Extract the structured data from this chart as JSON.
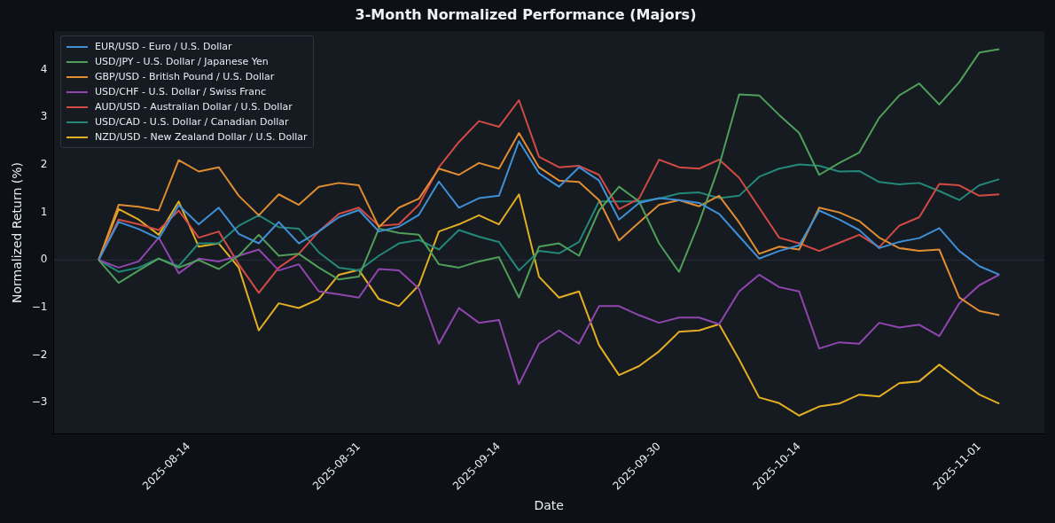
{
  "chart_data": {
    "type": "line",
    "title": "3-Month Normalized Performance (Majors)",
    "xlabel": "Date",
    "ylabel": "Normalized Return (%)",
    "x": [
      "2025-08-05",
      "2025-08-07",
      "2025-08-09",
      "2025-08-11",
      "2025-08-13",
      "2025-08-15",
      "2025-08-17",
      "2025-08-19",
      "2025-08-21",
      "2025-08-23",
      "2025-08-25",
      "2025-08-27",
      "2025-08-29",
      "2025-08-31",
      "2025-09-02",
      "2025-09-04",
      "2025-09-06",
      "2025-09-08",
      "2025-09-10",
      "2025-09-12",
      "2025-09-14",
      "2025-09-16",
      "2025-09-18",
      "2025-09-20",
      "2025-09-22",
      "2025-09-24",
      "2025-09-26",
      "2025-09-28",
      "2025-09-30",
      "2025-10-02",
      "2025-10-04",
      "2025-10-06",
      "2025-10-08",
      "2025-10-10",
      "2025-10-12",
      "2025-10-14",
      "2025-10-16",
      "2025-10-18",
      "2025-10-20",
      "2025-10-22",
      "2025-10-24",
      "2025-10-26",
      "2025-10-28",
      "2025-10-30",
      "2025-11-01",
      "2025-11-03"
    ],
    "series": [
      {
        "name": "EUR/USD - Euro / U.S. Dollar",
        "color": "#3f8fd6",
        "values": [
          0,
          0.8,
          0.65,
          0.45,
          1.15,
          0.75,
          1.1,
          0.55,
          0.35,
          0.8,
          0.35,
          0.6,
          0.9,
          1.05,
          0.6,
          0.7,
          0.95,
          1.65,
          1.1,
          1.3,
          1.35,
          2.5,
          1.82,
          1.54,
          1.95,
          1.67,
          0.85,
          1.2,
          1.3,
          1.26,
          1.2,
          0.97,
          0.5,
          0.03,
          0.19,
          0.31,
          1.04,
          0.85,
          0.63,
          0.25,
          0.38,
          0.46,
          0.67,
          0.19,
          -0.13,
          -0.31
        ]
      },
      {
        "name": "USD/JPY - U.S. Dollar / Japanese Yen",
        "color": "#4f9e59",
        "values": [
          0,
          -0.48,
          -0.22,
          0.03,
          -0.16,
          0,
          -0.19,
          0.09,
          0.53,
          0.09,
          0.13,
          -0.16,
          -0.41,
          -0.35,
          0.66,
          0.57,
          0.53,
          -0.09,
          -0.16,
          -0.03,
          0.06,
          -0.79,
          0.28,
          0.35,
          0.09,
          1.04,
          1.54,
          1.23,
          0.35,
          -0.25,
          0.79,
          1.98,
          3.48,
          3.46,
          3.05,
          2.67,
          1.79,
          2.04,
          2.26,
          2.99,
          3.46,
          3.71,
          3.27,
          3.74,
          4.36,
          4.43
        ]
      },
      {
        "name": "GBP/USD - British Pound / U.S. Dollar",
        "color": "#e08c30",
        "values": [
          0,
          1.16,
          1.12,
          1.04,
          2.1,
          1.86,
          1.95,
          1.35,
          0.94,
          1.38,
          1.16,
          1.54,
          1.62,
          1.57,
          0.69,
          1.1,
          1.29,
          1.92,
          1.79,
          2.04,
          1.92,
          2.67,
          1.95,
          1.67,
          1.64,
          1.26,
          0.41,
          0.79,
          1.16,
          1.26,
          1.13,
          1.35,
          0.79,
          0.13,
          0.28,
          0.22,
          1.1,
          1,
          0.82,
          0.47,
          0.25,
          0.19,
          0.22,
          -0.79,
          -1.07,
          -1.16
        ]
      },
      {
        "name": "USD/CHF - U.S. Dollar / Swiss Franc",
        "color": "#9046ae",
        "values": [
          0,
          -0.16,
          -0.03,
          0.47,
          -0.28,
          0.03,
          -0.03,
          0.09,
          0.22,
          -0.22,
          -0.09,
          -0.66,
          -0.72,
          -0.79,
          -0.19,
          -0.22,
          -0.6,
          -1.76,
          -1.01,
          -1.32,
          -1.26,
          -2.61,
          -1.76,
          -1.48,
          -1.76,
          -0.97,
          -0.97,
          -1.16,
          -1.32,
          -1.21,
          -1.21,
          -1.35,
          -0.66,
          -0.31,
          -0.57,
          -0.66,
          -1.86,
          -1.73,
          -1.76,
          -1.32,
          -1.42,
          -1.36,
          -1.6,
          -0.91,
          -0.53,
          -0.31
        ]
      },
      {
        "name": "AUD/USD - Australian Dollar / U.S. Dollar",
        "color": "#d24a44",
        "values": [
          0,
          0.85,
          0.75,
          0.63,
          1.04,
          0.47,
          0.6,
          -0.09,
          -0.69,
          -0.16,
          0.13,
          0.6,
          0.97,
          1.1,
          0.72,
          0.75,
          1.16,
          1.95,
          2.48,
          2.92,
          2.8,
          3.36,
          2.17,
          1.95,
          1.98,
          1.79,
          1.07,
          1.29,
          2.11,
          1.95,
          1.92,
          2.11,
          1.73,
          1.1,
          0.47,
          0.35,
          0.19,
          0.36,
          0.53,
          0.27,
          0.72,
          0.9,
          1.6,
          1.57,
          1.35,
          1.38
        ]
      },
      {
        "name": "USD/CAD - U.S. Dollar / Canadian Dollar",
        "color": "#23877a",
        "values": [
          0,
          -0.25,
          -0.16,
          0.03,
          -0.13,
          0.35,
          0.35,
          0.72,
          0.94,
          0.69,
          0.66,
          0.16,
          -0.16,
          -0.22,
          0.09,
          0.35,
          0.42,
          0.22,
          0.63,
          0.49,
          0.38,
          -0.22,
          0.19,
          0.14,
          0.38,
          1.23,
          1.23,
          1.23,
          1.29,
          1.4,
          1.42,
          1.3,
          1.35,
          1.75,
          1.92,
          2.01,
          1.98,
          1.86,
          1.87,
          1.64,
          1.59,
          1.62,
          1.45,
          1.26,
          1.57,
          1.7
        ]
      },
      {
        "name": "NZD/USD - New Zealand Dollar / U.S. Dollar",
        "color": "#e3ae22",
        "values": [
          0,
          1.07,
          0.85,
          0.53,
          1.23,
          0.28,
          0.35,
          -0.16,
          -1.48,
          -0.91,
          -1.01,
          -0.82,
          -0.31,
          -0.21,
          -0.82,
          -0.97,
          -0.53,
          0.6,
          0.75,
          0.94,
          0.75,
          1.38,
          -0.35,
          -0.79,
          -0.66,
          -1.79,
          -2.42,
          -2.23,
          -1.92,
          -1.51,
          -1.48,
          -1.35,
          -2.09,
          -2.89,
          -3.01,
          -3.27,
          -3.08,
          -3.02,
          -2.83,
          -2.87,
          -2.59,
          -2.55,
          -2.2,
          -2.52,
          -2.83,
          -3.02
        ]
      }
    ],
    "xlim": [
      "2025-07-31T12:00",
      "2025-11-07T12:00"
    ],
    "xticks": [
      "2025-08-14",
      "2025-08-31",
      "2025-09-14",
      "2025-09-30",
      "2025-10-14",
      "2025-11-01"
    ],
    "ylim": [
      -3.66,
      4.81
    ],
    "yticks": [
      {
        "value": -3,
        "label": "−3"
      },
      {
        "value": -2,
        "label": "−2"
      },
      {
        "value": -1,
        "label": "−1"
      },
      0,
      1,
      2,
      3,
      4
    ],
    "ref_lines": [
      {
        "axis": "y",
        "value": 0,
        "color": "#2a2f37"
      }
    ],
    "legend": "top left",
    "marker": "none",
    "line_style": "solid",
    "grid": false
  }
}
